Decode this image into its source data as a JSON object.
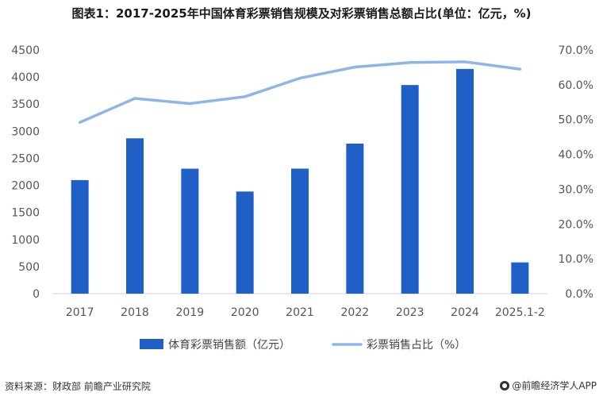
{
  "chart_data": {
    "type": "bar",
    "title": "图表1：2017-2025年中国体育彩票销售规模及对彩票销售总额占比(单位：亿元，%)",
    "categories": [
      "2017",
      "2018",
      "2019",
      "2020",
      "2021",
      "2022",
      "2023",
      "2024",
      "2025.1-2"
    ],
    "series": [
      {
        "name": "体育彩票销售额（亿元）",
        "type": "bar",
        "axis": "left",
        "values": [
          2097,
          2869,
          2308,
          1886,
          2309,
          2771,
          3853,
          4150,
          577
        ]
      },
      {
        "name": "彩票销售占比（%）",
        "type": "line",
        "axis": "right",
        "values": [
          49.2,
          56.1,
          54.6,
          56.6,
          61.9,
          65.1,
          66.4,
          66.6,
          64.5
        ]
      }
    ],
    "y_left": {
      "min": 0,
      "max": 4500,
      "step": 500
    },
    "y_right": {
      "min": 0,
      "max": 70,
      "step": 10,
      "suffix": "%"
    },
    "colors": {
      "bar": "#1f5fc6",
      "line": "#8fb5e8"
    },
    "legend_position": "bottom",
    "grid": false
  },
  "footer": {
    "source": "资料来源：财政部 前瞻产业研究院",
    "brand": "@前瞻经济学人APP"
  }
}
